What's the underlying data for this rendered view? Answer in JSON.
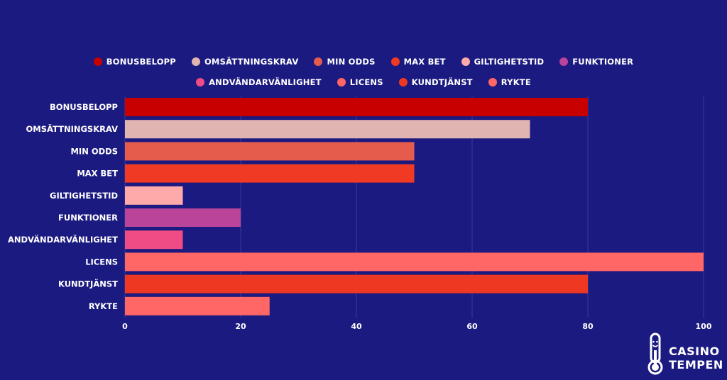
{
  "chart_data": {
    "type": "bar",
    "orientation": "horizontal",
    "categories": [
      "BONUSBELOPP",
      "OMSÄTTNINGSKRAV",
      "MIN ODDS",
      "MAX BET",
      "GILTIGHETSTID",
      "FUNKTIONER",
      "ANDVÄNDARVÄNLIGHET",
      "LICENS",
      "KUNDTJÄNST",
      "RYKTE"
    ],
    "values": [
      80,
      70,
      50,
      50,
      10,
      20,
      10,
      100,
      80,
      25
    ],
    "colors": [
      "#c80000",
      "#e0b4b0",
      "#e55c4c",
      "#f03a24",
      "#ffaaaa",
      "#b9449a",
      "#ef4c86",
      "#ff6666",
      "#ef3822",
      "#ff6666"
    ],
    "xlim": [
      0,
      100
    ],
    "xticks": [
      0,
      20,
      40,
      60,
      80,
      100
    ],
    "xtick_labels": [
      "0",
      "20",
      "40",
      "60",
      "80",
      "100"
    ],
    "grid": "vertical",
    "legend_position": "top-center",
    "title": "",
    "xlabel": "",
    "ylabel": ""
  },
  "legend": {
    "row1": [
      {
        "label": "BONUSBELOPP",
        "color": "#c80000"
      },
      {
        "label": "OMSÄTTNINGSKRAV",
        "color": "#e0b4b0"
      },
      {
        "label": "MIN ODDS",
        "color": "#e55c4c"
      },
      {
        "label": "MAX BET",
        "color": "#f03a24"
      },
      {
        "label": "GILTIGHETSTID",
        "color": "#ffaaaa"
      },
      {
        "label": "FUNKTIONER",
        "color": "#b9449a"
      }
    ],
    "row2": [
      {
        "label": "ANDVÄNDARVÄNLIGHET",
        "color": "#ef4c86"
      },
      {
        "label": "LICENS",
        "color": "#ff6666"
      },
      {
        "label": "KUNDTJÄNST",
        "color": "#ef3822"
      },
      {
        "label": "RYKTE",
        "color": "#ff6666"
      }
    ]
  },
  "logo": {
    "line1": "CASINO",
    "line2": "TEMPEN",
    "icon": "thermometer-icon"
  }
}
